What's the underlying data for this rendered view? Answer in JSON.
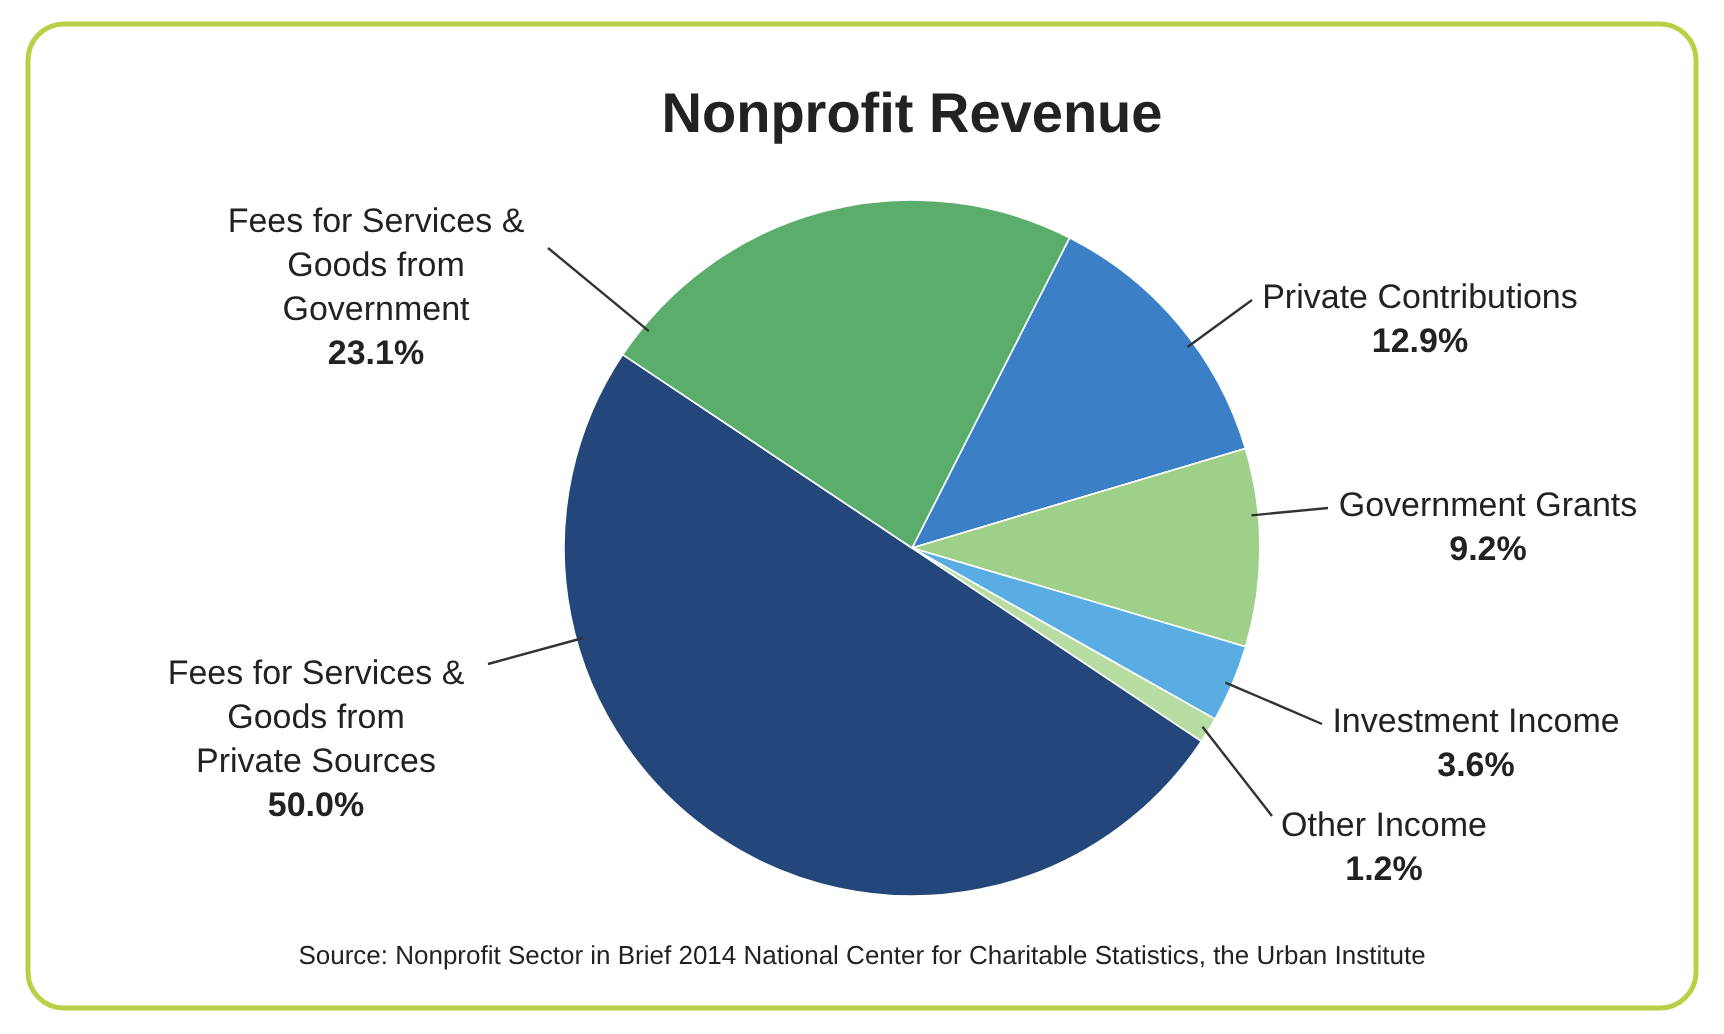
{
  "chart_data": {
    "type": "pie",
    "title": "Nonprofit Revenue",
    "categories": [
      "Private Contributions",
      "Government Grants",
      "Investment Income",
      "Other Income",
      "Fees for Services & Goods from Private Sources",
      "Fees for Services & Goods from Government"
    ],
    "values": [
      12.9,
      9.2,
      3.6,
      1.2,
      50.0,
      23.1
    ],
    "colors": [
      "#3b80c6",
      "#9fd08a",
      "#5aade2",
      "#b8dda2",
      "#23477a",
      "#5bad6b"
    ],
    "value_labels": [
      "12.9%",
      "9.2%",
      "3.6%",
      "1.2%",
      "50.0%",
      "23.1%"
    ],
    "annotations": [
      "Source: Nonprofit Sector in Brief 2014 National Center for Charitable Statistics, the Urban Institute"
    ]
  }
}
